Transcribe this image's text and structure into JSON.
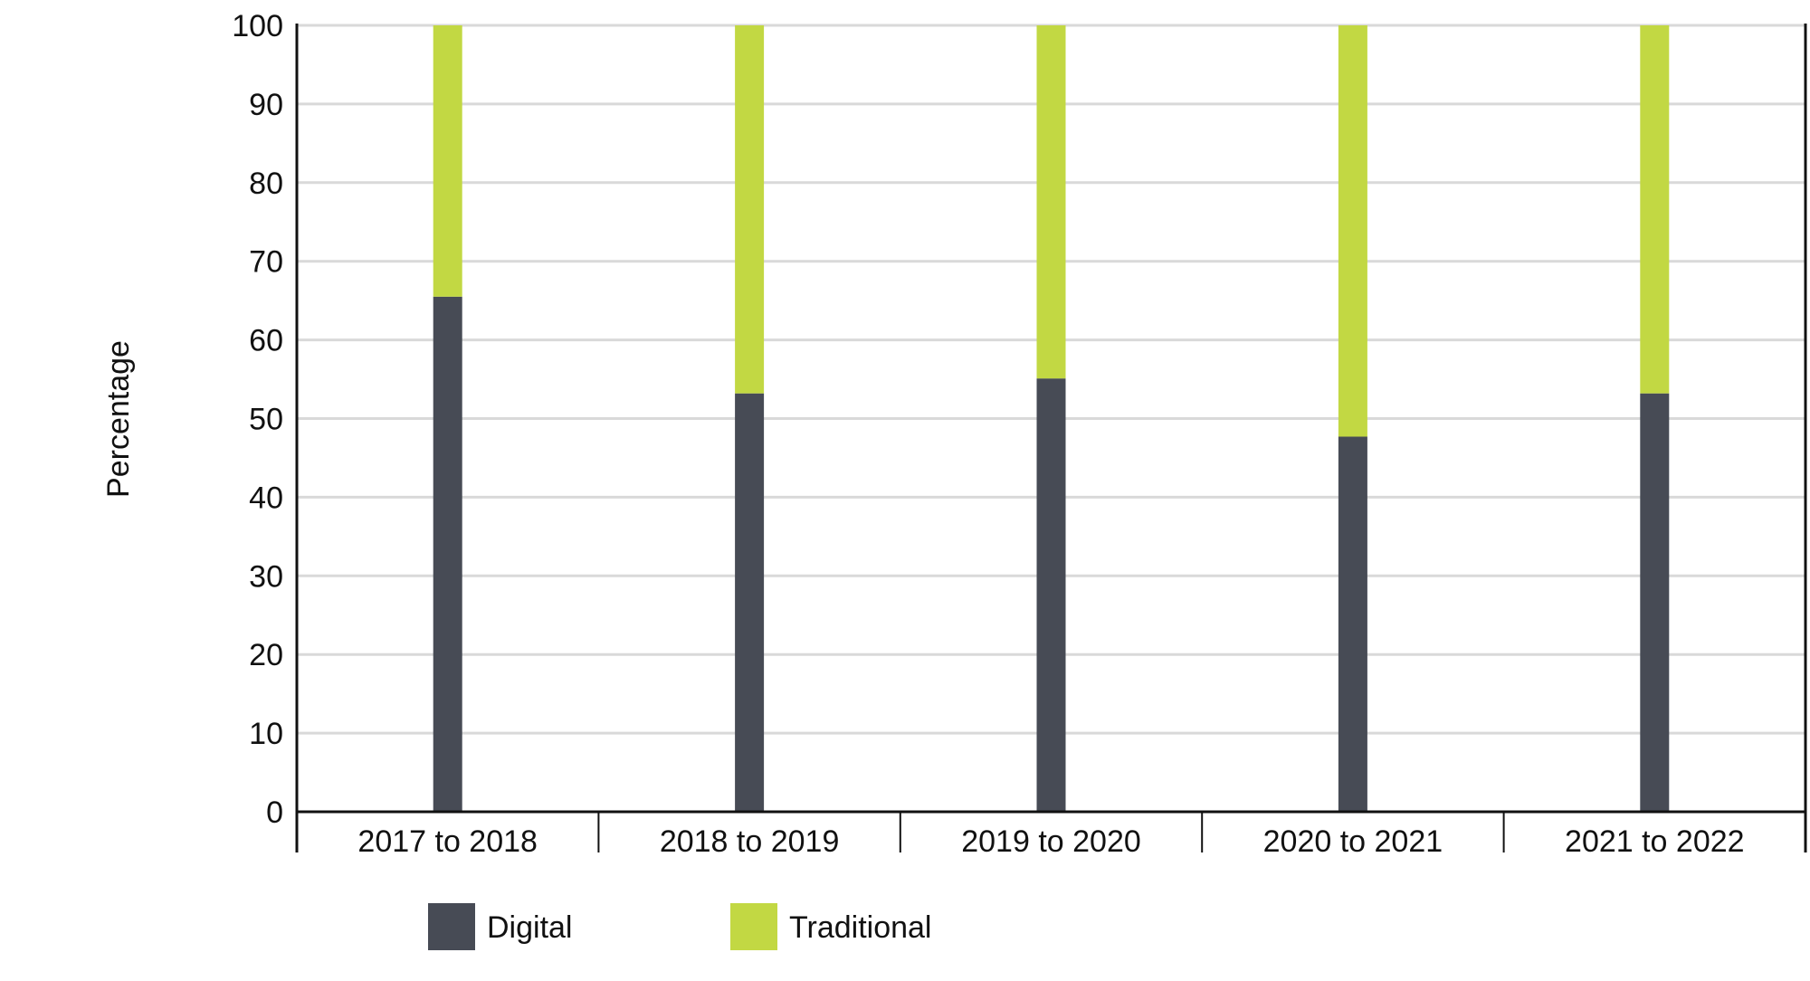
{
  "chart_data": {
    "type": "bar",
    "stacked": true,
    "categories": [
      "2017 to 2018",
      "2018 to 2019",
      "2019 to 2020",
      "2020 to 2021",
      "2021 to 2022"
    ],
    "series": [
      {
        "name": "Digital",
        "values": [
          65.5,
          53.2,
          55.1,
          47.7,
          53.2
        ],
        "color": "#474b55"
      },
      {
        "name": "Traditional",
        "values": [
          34.5,
          46.8,
          44.9,
          52.3,
          46.8
        ],
        "color": "#c2d843"
      }
    ],
    "title": "",
    "xlabel": "",
    "ylabel": "Percentage",
    "ylim": [
      0,
      100
    ],
    "yticks": [
      0,
      10,
      20,
      30,
      40,
      50,
      60,
      70,
      80,
      90,
      100
    ],
    "grid": true,
    "legend_position": "bottom-left",
    "colors": {
      "gridline": "#d9d9d9",
      "axis": "#111111"
    }
  }
}
